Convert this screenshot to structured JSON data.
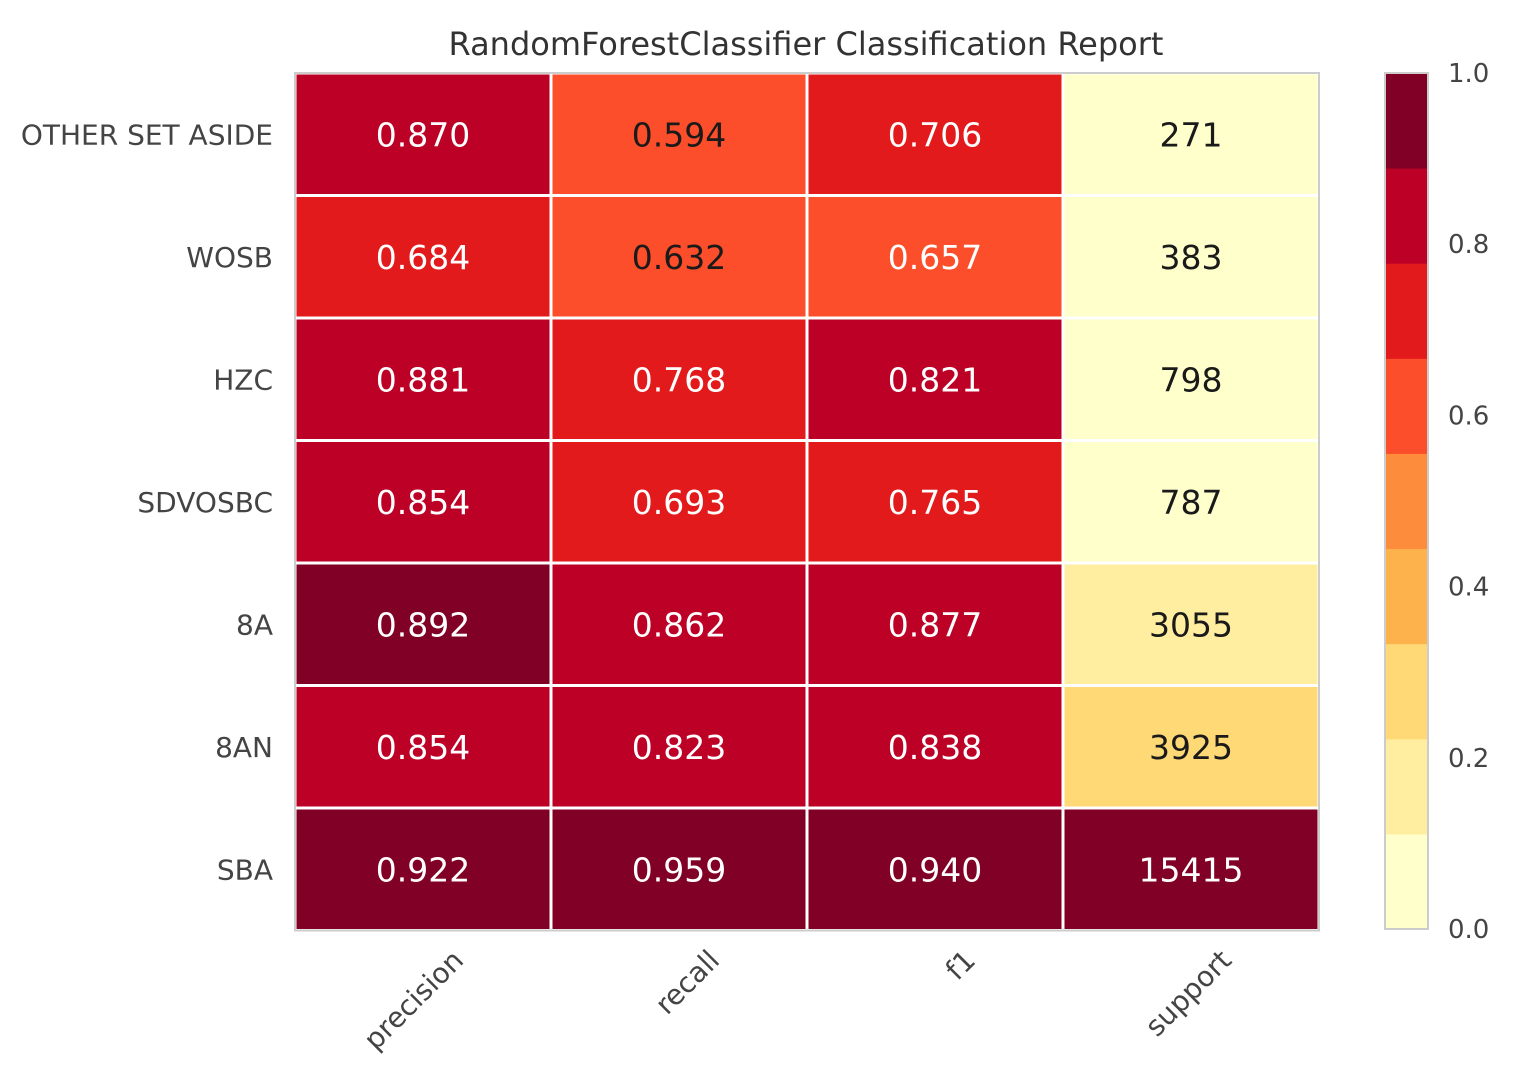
{
  "chart_data": {
    "type": "heatmap",
    "title": "RandomForestClassifier Classification Report",
    "columns": [
      "precision",
      "recall",
      "f1",
      "support"
    ],
    "rows": [
      "OTHER SET ASIDE",
      "WOSB",
      "HZC",
      "SDVOSBC",
      "8A",
      "8AN",
      "SBA"
    ],
    "cells": [
      [
        "0.870",
        "0.594",
        "0.706",
        "271"
      ],
      [
        "0.684",
        "0.632",
        "0.657",
        "383"
      ],
      [
        "0.881",
        "0.768",
        "0.821",
        "798"
      ],
      [
        "0.854",
        "0.693",
        "0.765",
        "787"
      ],
      [
        "0.892",
        "0.862",
        "0.877",
        "3055"
      ],
      [
        "0.854",
        "0.823",
        "0.838",
        "3925"
      ],
      [
        "0.922",
        "0.959",
        "0.940",
        "15415"
      ]
    ],
    "support_max": 15415,
    "colorbar": {
      "range": [
        0.0,
        1.0
      ],
      "tick_labels": [
        "0.0",
        "0.2",
        "0.4",
        "0.6",
        "0.8",
        "1.0"
      ],
      "palette": [
        "#ffffcc",
        "#ffeda0",
        "#fed976",
        "#feb24c",
        "#fd8d3c",
        "#fc4e2a",
        "#e31a1c",
        "#bd0026",
        "#800026"
      ],
      "position": "right"
    },
    "grid": false
  }
}
